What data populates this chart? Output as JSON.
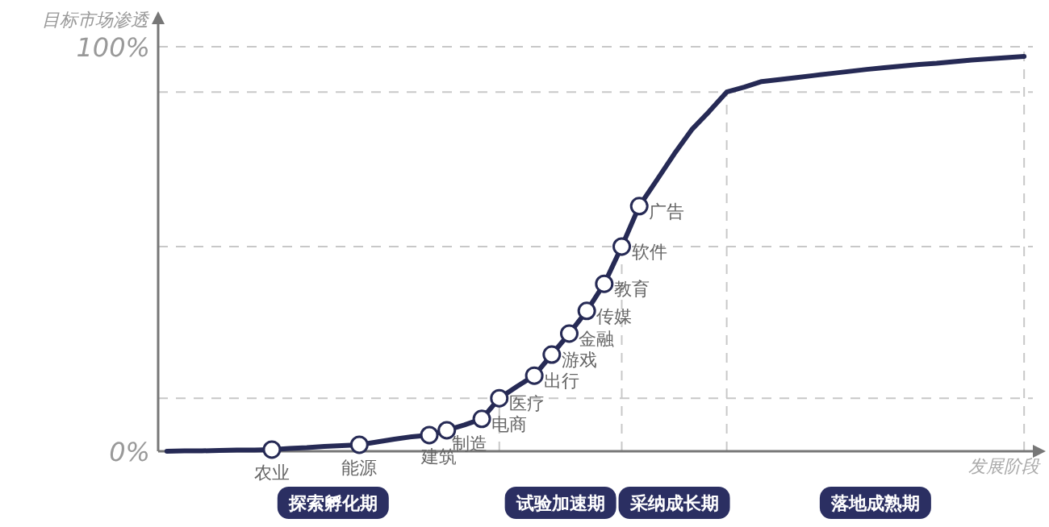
{
  "chart_data": {
    "type": "line",
    "xlabel": "发展阶段",
    "ylabel": "目标市场渗透",
    "categories": [
      null,
      null,
      null,
      null,
      null,
      null,
      null,
      null,
      null,
      null,
      null,
      null,
      null,
      null,
      null,
      null,
      null,
      null,
      null,
      null,
      null,
      null,
      null,
      null,
      null,
      null,
      null,
      null,
      null,
      null,
      null,
      null,
      null,
      null,
      null,
      null,
      null,
      null,
      null,
      null,
      null,
      null,
      null,
      null,
      null,
      null,
      null,
      null,
      null,
      null
    ],
    "ylim": [
      0,
      100
    ],
    "yticks": [
      {
        "value": 0,
        "label": "0%"
      },
      {
        "value": 100,
        "label": "100%"
      }
    ],
    "tick_labels": "y",
    "grid": "y",
    "series": [
      {
        "color": "#262a55",
        "values": [
          0,
          0.1,
          0.1,
          0.2,
          0.3,
          0.3,
          0.4,
          0.7,
          0.9,
          1.2,
          1.4,
          1.6,
          2.3,
          3.0,
          3.6,
          4.0,
          5.2,
          6.5,
          8.0,
          13.1,
          16,
          18.7,
          23.9,
          29.1,
          34.7,
          41.4,
          50.6,
          60.6,
          67,
          73.5,
          79.5,
          84,
          88.8,
          90,
          91.4,
          91.9,
          92.4,
          92.9,
          93.4,
          93.9,
          94.4,
          94.8,
          95.2,
          95.6,
          95.9,
          96.3,
          96.7,
          97.0,
          97.3,
          97.6
        ]
      },
      {
        "type": "scatter",
        "color": "#ffffff",
        "marker": "circle",
        "values": [
          null,
          null,
          null,
          null,
          null,
          null,
          0.4,
          null,
          null,
          null,
          null,
          1.6,
          null,
          null,
          null,
          4.0,
          5.2,
          null,
          8.0,
          13.1,
          null,
          18.7,
          23.9,
          29.1,
          34.7,
          41.4,
          50.6,
          60.6,
          null,
          null,
          null,
          null,
          null,
          null,
          null,
          null,
          null,
          null,
          null,
          null,
          null,
          null,
          null,
          null,
          null,
          null,
          null,
          null,
          null,
          null
        ],
        "value_labels": [
          null,
          null,
          null,
          null,
          null,
          null,
          "农业",
          null,
          null,
          null,
          null,
          "能源",
          null,
          null,
          null,
          "建筑",
          "制造",
          null,
          "电商",
          "医疗",
          null,
          "出行",
          "游戏",
          "金融",
          "传媒",
          "教育",
          "软件",
          "广告",
          null,
          null,
          null,
          null,
          null,
          null,
          null,
          null,
          null,
          null,
          null,
          null,
          null,
          null,
          null,
          null,
          null,
          null,
          null,
          null,
          null,
          null
        ]
      }
    ],
    "ref_lines": [
      {
        "axis": "y",
        "value": 88.8,
        "color": "#c8c8c8",
        "line_style": "dashed"
      },
      {
        "axis": "y",
        "value": 50.6,
        "color": "#c8c8c8",
        "line_style": "dashed"
      },
      {
        "axis": "y",
        "value": 13.1,
        "color": "#c8c8c8",
        "line_style": "dashed"
      }
    ],
    "annotations": [
      "探索孵化期",
      "试验加速期",
      "采纳成长期",
      "落地成熟期"
    ]
  }
}
